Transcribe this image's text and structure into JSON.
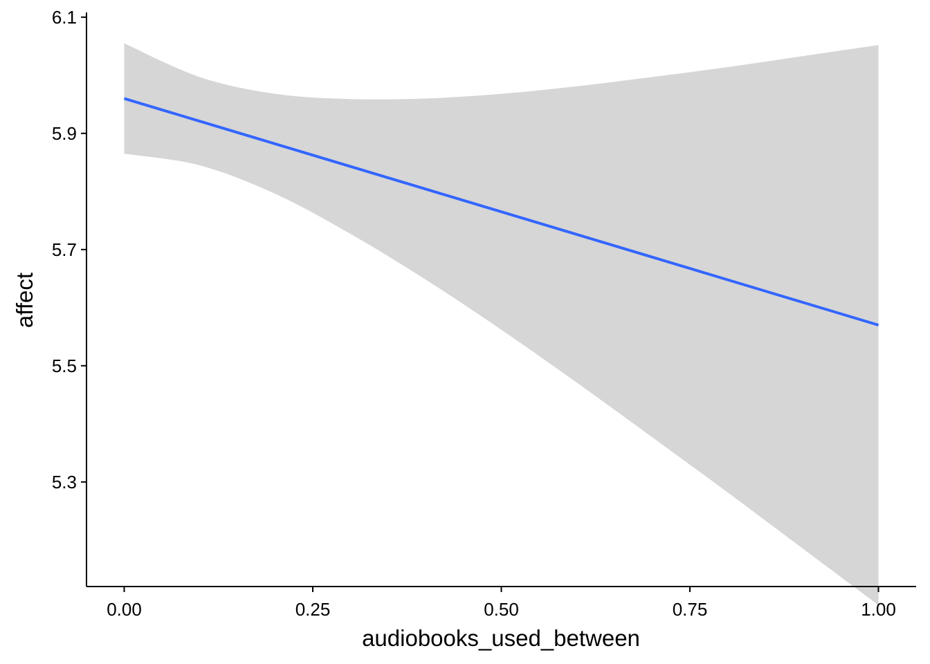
{
  "chart_data": {
    "type": "line",
    "title": "",
    "xlabel": "audiobooks_used_between",
    "ylabel": "affect",
    "xlim": [
      -0.05,
      1.05
    ],
    "ylim": [
      5.12,
      6.12
    ],
    "x_ticks": [
      0,
      0.25,
      0.5,
      0.75,
      1
    ],
    "x_tick_labels": [
      "0.00",
      "0.25",
      "0.50",
      "0.75",
      "1.00"
    ],
    "y_ticks": [
      5.3,
      5.5,
      5.7,
      5.9,
      6.1
    ],
    "y_tick_labels": [
      "5.3",
      "5.5",
      "5.7",
      "5.9",
      "6.1"
    ],
    "grid": false,
    "legend": "none",
    "series": [
      {
        "x": [
          0,
          0.1,
          0.2,
          0.3,
          0.4,
          0.5,
          0.6,
          0.7,
          0.8,
          0.9,
          1.0
        ],
        "y": [
          5.96,
          5.921,
          5.882,
          5.843,
          5.804,
          5.765,
          5.726,
          5.687,
          5.648,
          5.609,
          5.57
        ],
        "ribbon_lower": [
          5.865,
          5.845,
          5.796,
          5.727,
          5.648,
          5.562,
          5.471,
          5.377,
          5.282,
          5.185,
          5.088
        ],
        "ribbon_upper": [
          6.055,
          5.997,
          5.968,
          5.959,
          5.96,
          5.968,
          5.981,
          5.997,
          6.014,
          6.033,
          6.052
        ]
      }
    ],
    "colors": {
      "line": "#3366FF",
      "ribbon": "#D6D6D6",
      "axis": "#000000"
    }
  }
}
